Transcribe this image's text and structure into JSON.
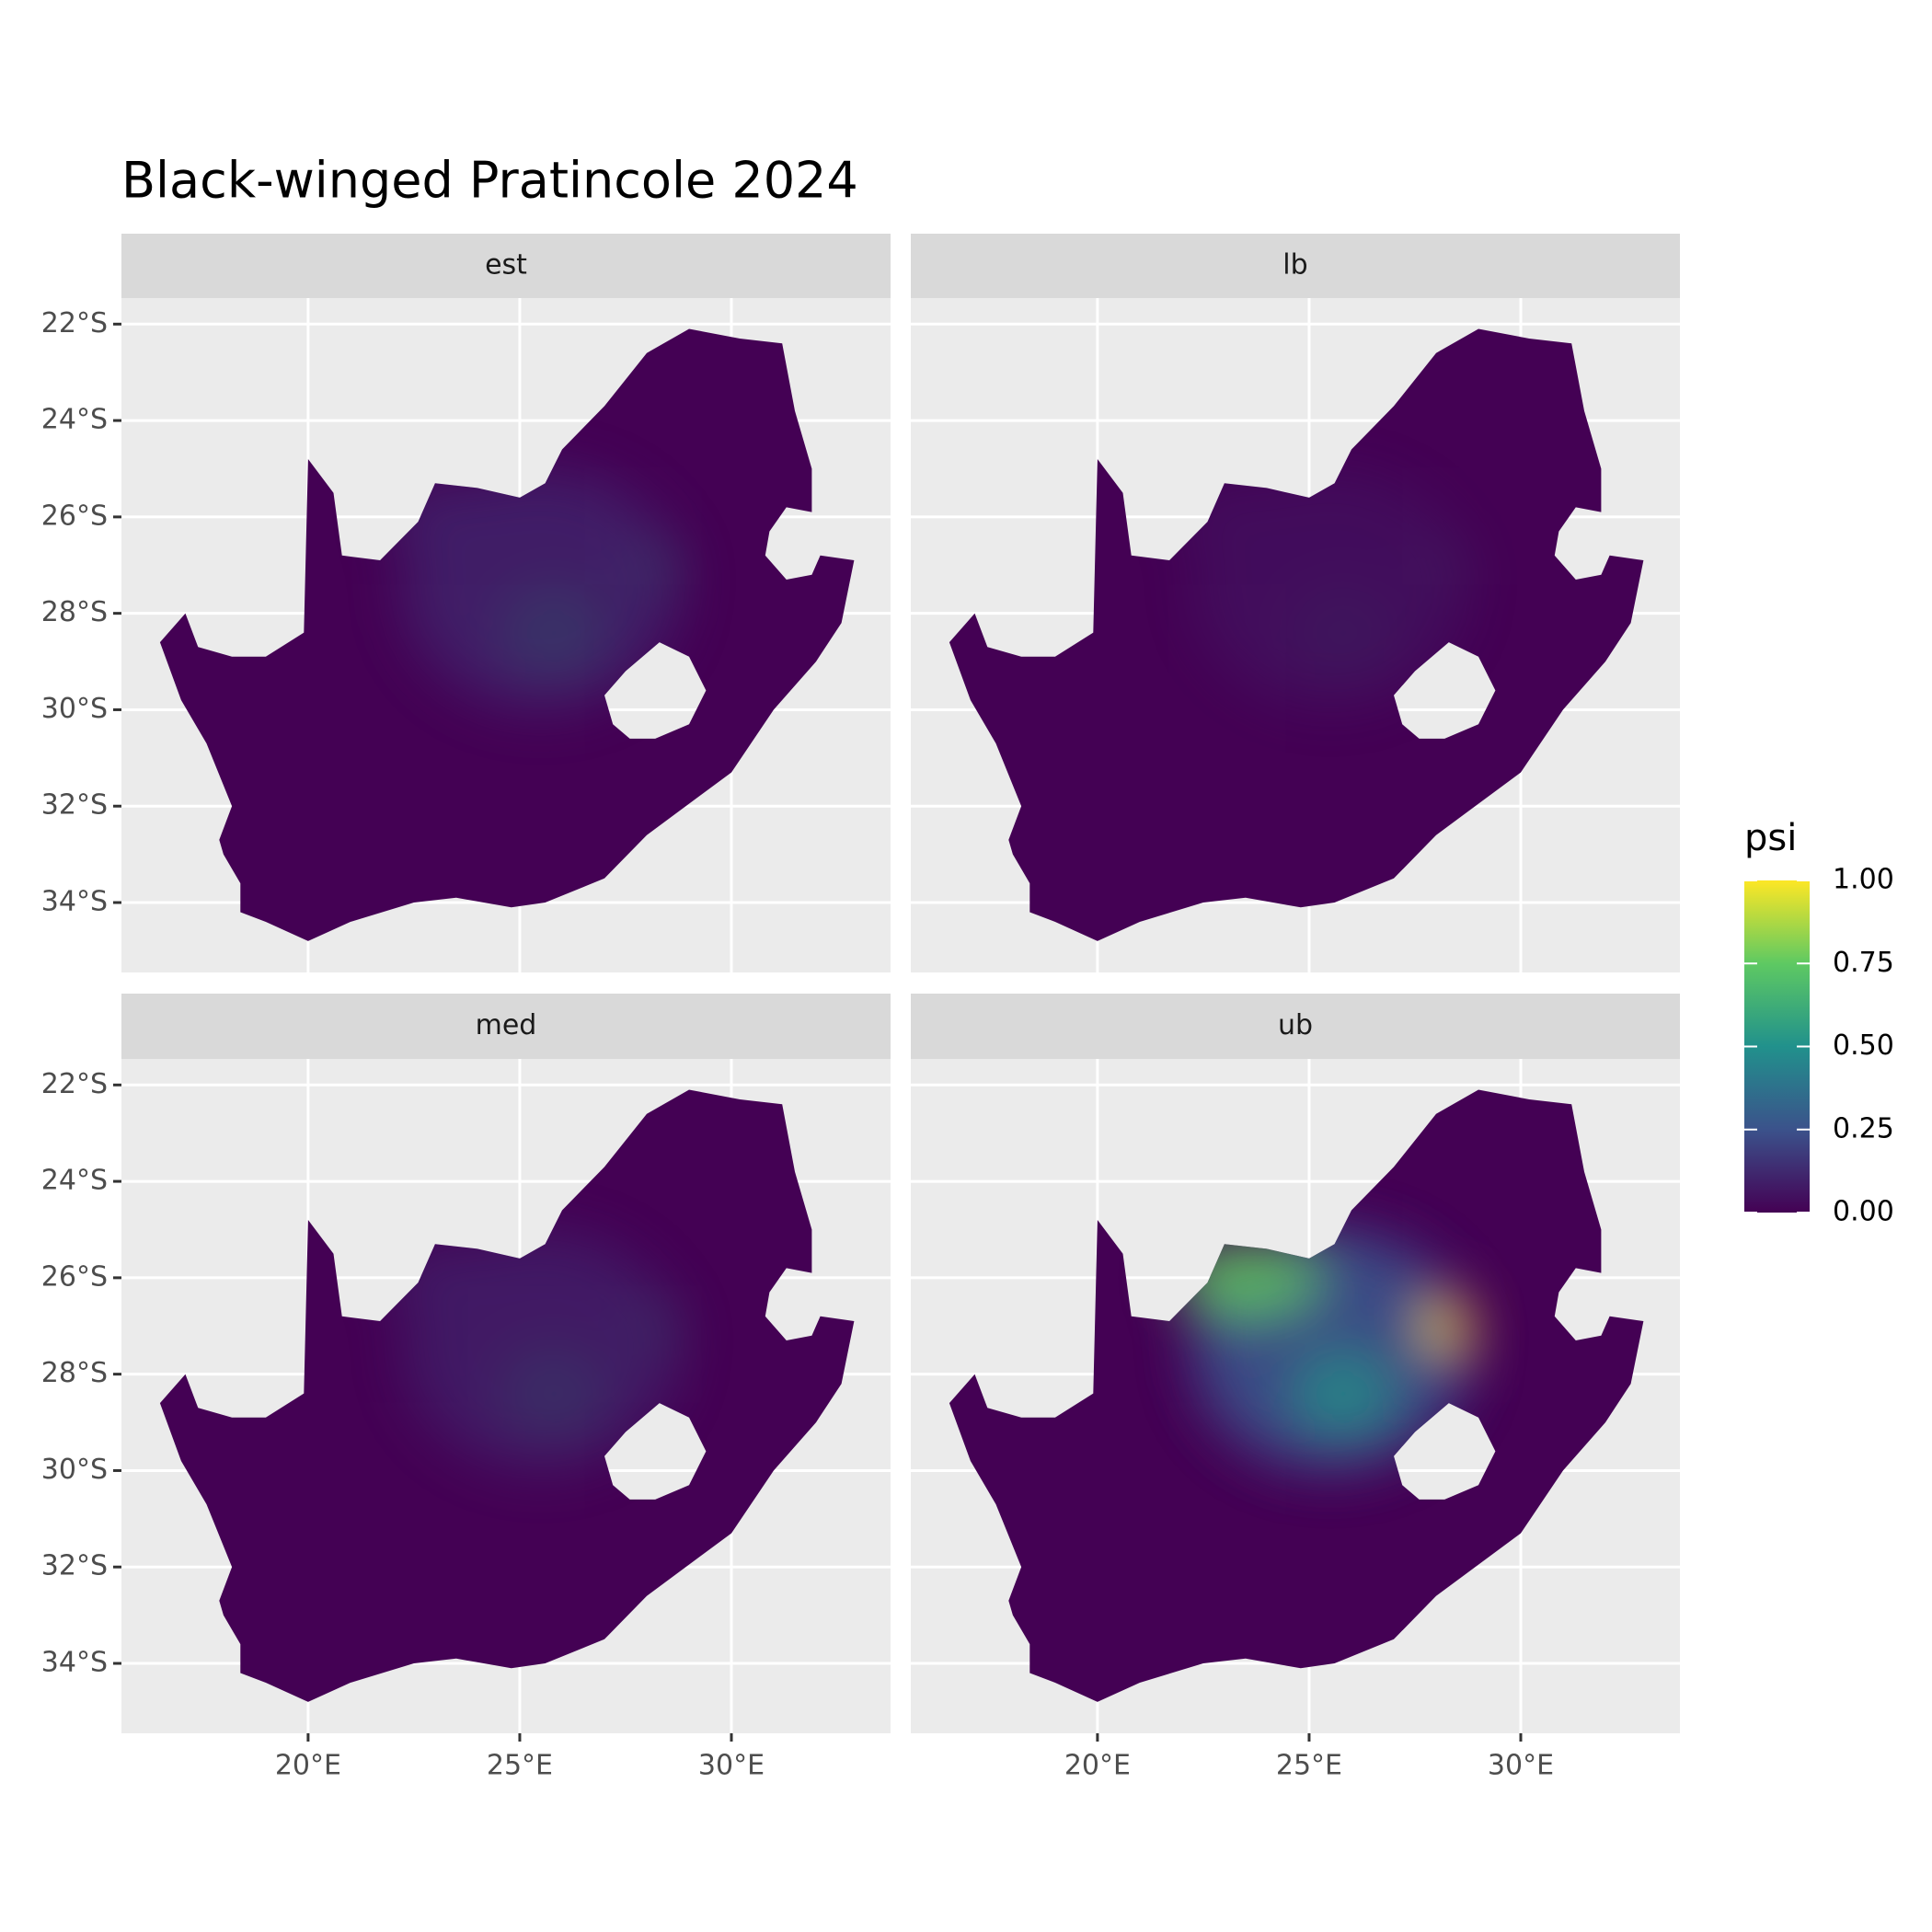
{
  "chart_data": {
    "type": "map",
    "title": "Black-winged Pratincole 2024",
    "facets": [
      "est",
      "lb",
      "med",
      "ub"
    ],
    "xlim": [
      15.59,
      33.76
    ],
    "ylim": [
      -35.45,
      -21.46
    ],
    "xticks": [
      {
        "value": 20,
        "label": "20°E"
      },
      {
        "value": 25,
        "label": "25°E"
      },
      {
        "value": 30,
        "label": "30°E"
      }
    ],
    "yticks": [
      {
        "value": -22,
        "label": "22°S"
      },
      {
        "value": -24,
        "label": "24°S"
      },
      {
        "value": -26,
        "label": "26°S"
      },
      {
        "value": -28,
        "label": "28°S"
      },
      {
        "value": -30,
        "label": "30°S"
      },
      {
        "value": -32,
        "label": "32°S"
      },
      {
        "value": -34,
        "label": "34°S"
      }
    ],
    "grid": true,
    "legend": {
      "title": "psi",
      "lim": [
        0,
        1
      ],
      "colors": [
        "#440154",
        "#3b528b",
        "#21918c",
        "#5ec962",
        "#fde725"
      ],
      "ticks": [
        {
          "value": 0,
          "label": "0.00"
        },
        {
          "value": 0.25,
          "label": "0.25"
        },
        {
          "value": 0.5,
          "label": "0.50"
        },
        {
          "value": 0.75,
          "label": "0.75"
        },
        {
          "value": 1,
          "label": "1.00"
        }
      ]
    }
  }
}
